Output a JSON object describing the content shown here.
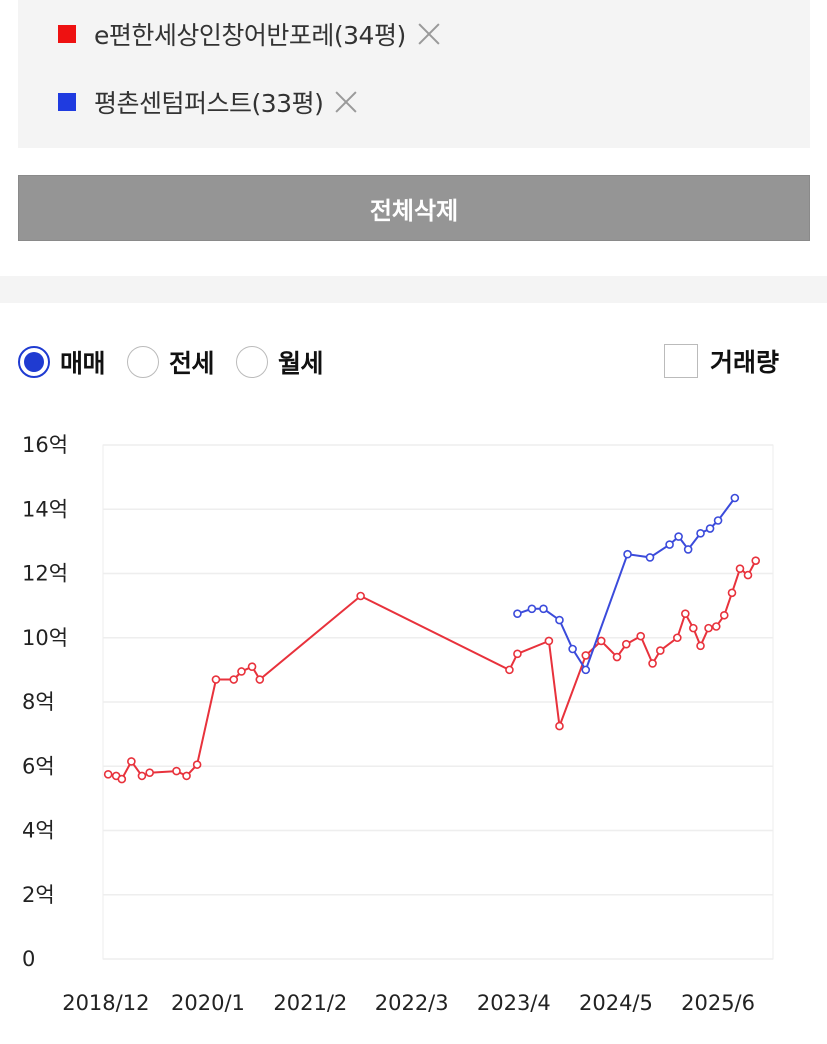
{
  "compare": {
    "items": [
      {
        "name": "e편한세상인창어반포레(34평)",
        "color": "#ee1111"
      },
      {
        "name": "평촌센텀퍼스트(33평)",
        "color": "#1f3be0"
      }
    ],
    "close_icon": "close-x-icon"
  },
  "delete_all_label": "전체삭제",
  "trade_types": {
    "options": [
      {
        "label": "매매",
        "checked": true
      },
      {
        "label": "전세",
        "checked": false
      },
      {
        "label": "월세",
        "checked": false
      }
    ]
  },
  "volume_toggle": {
    "label": "거래량",
    "checked": false
  },
  "chart_data": {
    "type": "line",
    "title": "",
    "xlabel": "",
    "ylabel": "",
    "ylim": [
      0,
      16
    ],
    "xlim": [
      "2018-11-20",
      "2025-12-31"
    ],
    "y_ticks": [
      {
        "value": 0,
        "label": "0"
      },
      {
        "value": 2,
        "label": "2억"
      },
      {
        "value": 4,
        "label": "4억"
      },
      {
        "value": 6,
        "label": "6억"
      },
      {
        "value": 8,
        "label": "8억"
      },
      {
        "value": 10,
        "label": "10억"
      },
      {
        "value": 12,
        "label": "12억"
      },
      {
        "value": 14,
        "label": "14억"
      },
      {
        "value": 16,
        "label": "16억"
      }
    ],
    "x_ticks": [
      {
        "date": "2018-12-01",
        "label": "2018/12"
      },
      {
        "date": "2020-01-01",
        "label": "2020/1"
      },
      {
        "date": "2021-02-01",
        "label": "2021/2"
      },
      {
        "date": "2022-03-01",
        "label": "2022/3"
      },
      {
        "date": "2023-04-01",
        "label": "2023/4"
      },
      {
        "date": "2024-05-01",
        "label": "2024/5"
      },
      {
        "date": "2025-06-01",
        "label": "2025/6"
      }
    ],
    "grid": true,
    "series": [
      {
        "name": "e편한세상인창어반포레(34평)",
        "color": "#e8323c",
        "points": [
          {
            "x": "2018-12-10",
            "y": 5.75
          },
          {
            "x": "2019-01-10",
            "y": 5.7
          },
          {
            "x": "2019-02-01",
            "y": 5.6
          },
          {
            "x": "2019-03-10",
            "y": 6.15
          },
          {
            "x": "2019-04-20",
            "y": 5.7
          },
          {
            "x": "2019-05-20",
            "y": 5.8
          },
          {
            "x": "2019-09-01",
            "y": 5.85
          },
          {
            "x": "2019-10-10",
            "y": 5.7
          },
          {
            "x": "2019-11-20",
            "y": 6.05
          },
          {
            "x": "2020-02-01",
            "y": 8.7
          },
          {
            "x": "2020-04-10",
            "y": 8.7
          },
          {
            "x": "2020-05-10",
            "y": 8.95
          },
          {
            "x": "2020-06-20",
            "y": 9.1
          },
          {
            "x": "2020-07-20",
            "y": 8.7
          },
          {
            "x": "2021-08-15",
            "y": 11.3
          },
          {
            "x": "2023-03-15",
            "y": 9.0
          },
          {
            "x": "2023-04-15",
            "y": 9.5
          },
          {
            "x": "2023-08-15",
            "y": 9.9
          },
          {
            "x": "2023-09-25",
            "y": 7.25
          },
          {
            "x": "2024-01-05",
            "y": 9.45
          },
          {
            "x": "2024-03-05",
            "y": 9.9
          },
          {
            "x": "2024-05-05",
            "y": 9.4
          },
          {
            "x": "2024-06-10",
            "y": 9.8
          },
          {
            "x": "2024-08-05",
            "y": 10.05
          },
          {
            "x": "2024-09-20",
            "y": 9.2
          },
          {
            "x": "2024-10-20",
            "y": 9.6
          },
          {
            "x": "2024-12-25",
            "y": 10.0
          },
          {
            "x": "2025-01-25",
            "y": 10.75
          },
          {
            "x": "2025-02-25",
            "y": 10.3
          },
          {
            "x": "2025-03-25",
            "y": 9.75
          },
          {
            "x": "2025-04-25",
            "y": 10.3
          },
          {
            "x": "2025-05-25",
            "y": 10.35
          },
          {
            "x": "2025-06-25",
            "y": 10.7
          },
          {
            "x": "2025-07-25",
            "y": 11.4
          },
          {
            "x": "2025-08-25",
            "y": 12.15
          },
          {
            "x": "2025-09-25",
            "y": 11.95
          },
          {
            "x": "2025-10-25",
            "y": 12.4
          }
        ]
      },
      {
        "name": "평촌센텀퍼스트(33평)",
        "color": "#3b4bdb",
        "points": [
          {
            "x": "2023-04-15",
            "y": 10.75
          },
          {
            "x": "2023-06-10",
            "y": 10.9
          },
          {
            "x": "2023-07-25",
            "y": 10.9
          },
          {
            "x": "2023-09-25",
            "y": 10.55
          },
          {
            "x": "2023-11-15",
            "y": 9.65
          },
          {
            "x": "2024-01-05",
            "y": 9.0
          },
          {
            "x": "2024-06-15",
            "y": 12.6
          },
          {
            "x": "2024-09-10",
            "y": 12.5
          },
          {
            "x": "2024-11-25",
            "y": 12.9
          },
          {
            "x": "2024-12-30",
            "y": 13.15
          },
          {
            "x": "2025-02-05",
            "y": 12.75
          },
          {
            "x": "2025-03-25",
            "y": 13.25
          },
          {
            "x": "2025-05-01",
            "y": 13.4
          },
          {
            "x": "2025-06-01",
            "y": 13.65
          },
          {
            "x": "2025-08-05",
            "y": 14.35
          }
        ]
      }
    ]
  }
}
